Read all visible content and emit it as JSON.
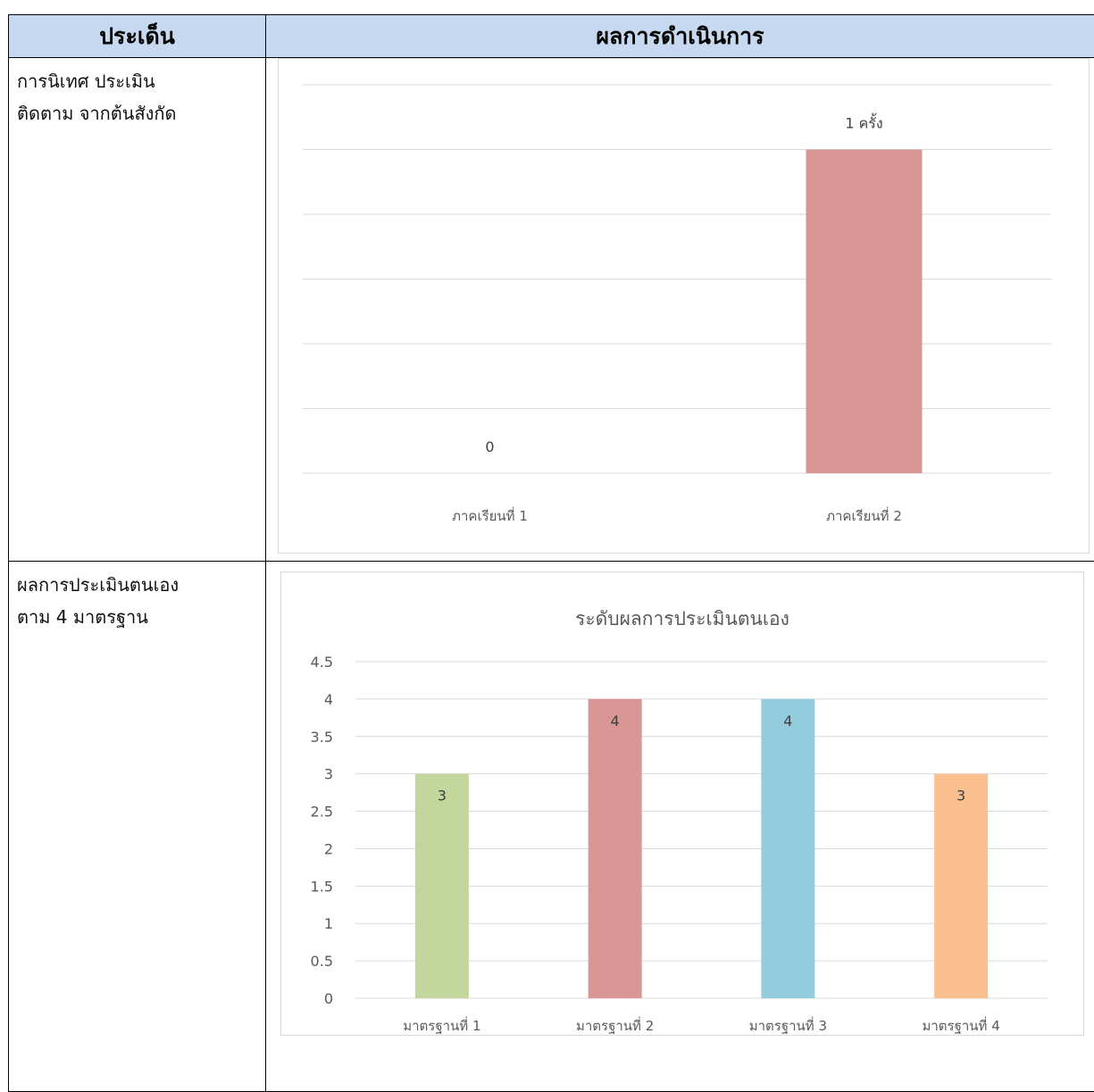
{
  "table": {
    "col_topic": "ประเด็น",
    "col_result": "ผลการดำเนินการ",
    "rows": [
      {
        "topic_line1": "การนิเทศ  ประเมิน",
        "topic_line2": "ติดตาม จากต้นสังกัด"
      },
      {
        "topic_line1": "ผลการประเมินตนเอง",
        "topic_line2": "ตาม 4 มาตรฐาน"
      }
    ]
  },
  "chart_data": [
    {
      "type": "bar",
      "title": "",
      "categories": [
        "ภาคเรียนที่ 1",
        "ภาคเรียนที่ 2"
      ],
      "values": [
        0,
        1
      ],
      "data_labels": [
        "0",
        "1 ครั้ง"
      ],
      "bar_colors": [
        "#d99694",
        "#d99694"
      ],
      "ylim": [
        0,
        1.2
      ],
      "y_axis_labels_shown": false,
      "grid": true
    },
    {
      "type": "bar",
      "title": "ระดับผลการประเมินตนเอง",
      "categories": [
        "มาตรฐานที่ 1",
        "มาตรฐานที่ 2",
        "มาตรฐานที่ 3",
        "มาตรฐานที่ 4"
      ],
      "values": [
        3,
        4,
        4,
        3
      ],
      "data_labels": [
        "3",
        "4",
        "4",
        "3"
      ],
      "bar_colors": [
        "#c3d69b",
        "#d99694",
        "#93cddd",
        "#fac090"
      ],
      "ylim": [
        0,
        4.5
      ],
      "yticks": [
        "0",
        "0.5",
        "1",
        "1.5",
        "2",
        "2.5",
        "3",
        "3.5",
        "4",
        "4.5"
      ],
      "grid": true
    }
  ]
}
